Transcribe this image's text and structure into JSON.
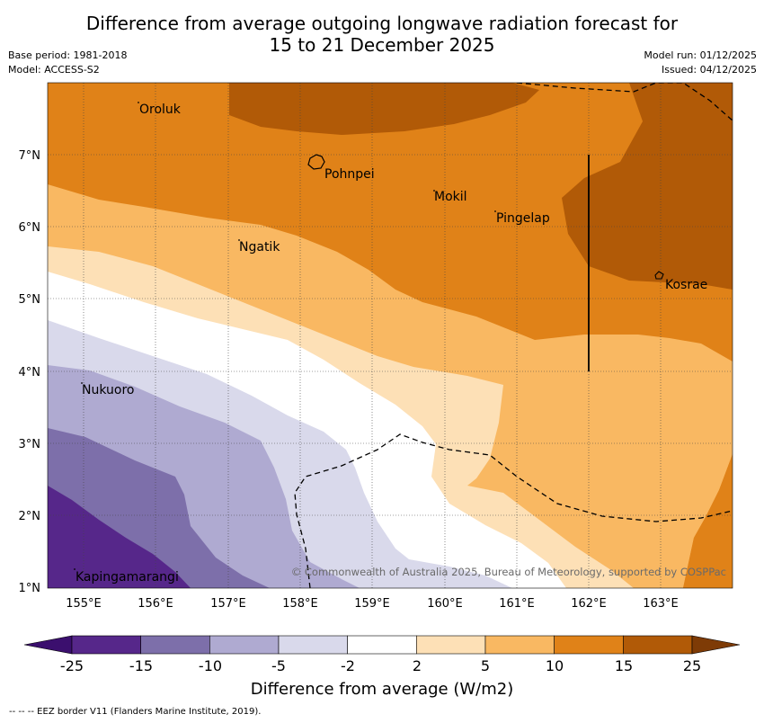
{
  "title": {
    "line1": "Difference from average outgoing longwave radiation forecast for",
    "line2": "15 to 21 December 2025"
  },
  "meta": {
    "base_period": "Base period: 1981-2018",
    "model": "Model: ACCESS-S2",
    "model_run": "Model run: 01/12/2025",
    "issued": "Issued: 04/12/2025"
  },
  "map": {
    "lon_ticks": [
      "155°E",
      "156°E",
      "157°E",
      "158°E",
      "159°E",
      "160°E",
      "161°E",
      "162°E",
      "163°E"
    ],
    "lat_ticks": [
      "7°N",
      "6°N",
      "5°N",
      "4°N",
      "3°N",
      "2°N",
      "1°N"
    ],
    "places": [
      {
        "name": "Oroluk"
      },
      {
        "name": "Pohnpei"
      },
      {
        "name": "Mokil"
      },
      {
        "name": "Pingelap"
      },
      {
        "name": "Ngatik"
      },
      {
        "name": "Kosrae"
      },
      {
        "name": "Nukuoro"
      },
      {
        "name": "Kapingamarangi"
      }
    ],
    "copyright": "© Commonwealth of Australia 2025, Bureau of Meteorology, supported by COSPPac"
  },
  "colorbar": {
    "label": "Difference from average (W/m2)",
    "ticks": [
      "-25",
      "-15",
      "-10",
      "-5",
      "-2",
      "2",
      "5",
      "10",
      "15",
      "25"
    ],
    "colors": [
      "#3b0f6e",
      "#56278a",
      "#7d6faa",
      "#afaad1",
      "#d9d9eb",
      "#ffffff",
      "#fde0b6",
      "#f9b862",
      "#e08218",
      "#b15a07",
      "#7e3b06"
    ]
  },
  "attribution": "--  --  -- EEZ border V11 (Flanders Marine Institute, 2019)."
}
